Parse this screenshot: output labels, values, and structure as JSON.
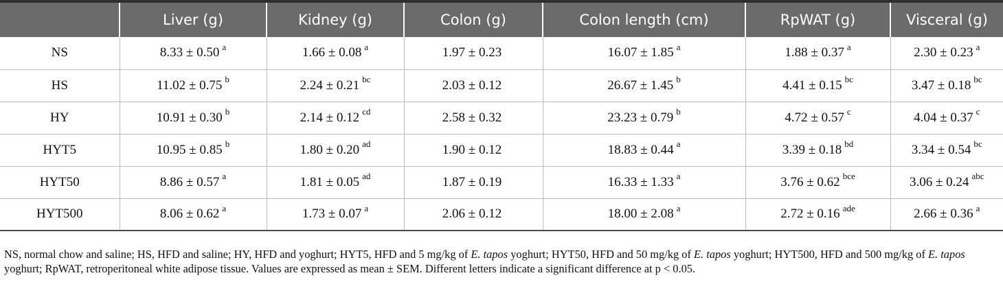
{
  "table": {
    "headers": [
      "",
      "Liver (g)",
      "Kidney (g)",
      "Colon (g)",
      "Colon length (cm)",
      "RpWAT (g)",
      "Visceral (g)"
    ],
    "rows": [
      {
        "group": "NS",
        "cells": [
          {
            "v": "8.33 ± 0.50",
            "s": "a"
          },
          {
            "v": "1.66 ± 0.08",
            "s": "a"
          },
          {
            "v": "1.97 ± 0.23",
            "s": ""
          },
          {
            "v": "16.07 ± 1.85",
            "s": "a"
          },
          {
            "v": "1.88 ± 0.37",
            "s": "a"
          },
          {
            "v": "2.30 ± 0.23",
            "s": "a"
          }
        ]
      },
      {
        "group": "HS",
        "cells": [
          {
            "v": "11.02 ± 0.75",
            "s": "b"
          },
          {
            "v": "2.24 ± 0.21",
            "s": "bc"
          },
          {
            "v": "2.03 ± 0.12",
            "s": ""
          },
          {
            "v": "26.67 ± 1.45",
            "s": "b"
          },
          {
            "v": "4.41 ± 0.15",
            "s": "bc"
          },
          {
            "v": "3.47 ± 0.18",
            "s": "bc"
          }
        ]
      },
      {
        "group": "HY",
        "cells": [
          {
            "v": "10.91 ± 0.30",
            "s": "b"
          },
          {
            "v": "2.14 ± 0.12",
            "s": "cd"
          },
          {
            "v": "2.58 ± 0.32",
            "s": ""
          },
          {
            "v": "23.23 ± 0.79",
            "s": "b"
          },
          {
            "v": "4.72 ± 0.57",
            "s": "c"
          },
          {
            "v": "4.04 ± 0.37",
            "s": "c"
          }
        ]
      },
      {
        "group": "HYT5",
        "cells": [
          {
            "v": "10.95 ± 0.85",
            "s": "b"
          },
          {
            "v": "1.80 ± 0.20",
            "s": "ad"
          },
          {
            "v": "1.90 ± 0.12",
            "s": ""
          },
          {
            "v": "18.83 ± 0.44",
            "s": "a"
          },
          {
            "v": "3.39 ± 0.18",
            "s": "bd"
          },
          {
            "v": "3.34 ± 0.54",
            "s": "bc"
          }
        ]
      },
      {
        "group": "HYT50",
        "cells": [
          {
            "v": "8.86 ± 0.57",
            "s": "a"
          },
          {
            "v": "1.81 ± 0.05",
            "s": "ad"
          },
          {
            "v": "1.87 ± 0.19",
            "s": ""
          },
          {
            "v": "16.33 ± 1.33",
            "s": "a"
          },
          {
            "v": "3.76 ± 0.62",
            "s": "bce"
          },
          {
            "v": "3.06 ± 0.24",
            "s": "abc"
          }
        ]
      },
      {
        "group": "HYT500",
        "cells": [
          {
            "v": "8.06 ± 0.62",
            "s": "a"
          },
          {
            "v": "1.73 ± 0.07",
            "s": "a"
          },
          {
            "v": "2.06 ± 0.12",
            "s": ""
          },
          {
            "v": "18.00 ± 2.08",
            "s": "a"
          },
          {
            "v": "2.72 ± 0.16",
            "s": "ade"
          },
          {
            "v": "2.66 ± 0.36",
            "s": "a"
          }
        ]
      }
    ]
  },
  "footnote": {
    "p1": "NS, normal chow and saline; HS, HFD and saline; HY, HFD and yoghurt; HYT5, HFD and 5 mg/kg of ",
    "i1": "E. tapos",
    "p2": " yoghurt; HYT50, HFD and 50 mg/kg of ",
    "i2": "E. tapos",
    "p3": " yoghurt; HYT500, HFD and 500 mg/kg of ",
    "i3": "E. tapos",
    "p4": " yoghurt; RpWAT, retroperitoneal white adipose tissue. Values are expressed as mean ± SEM. Different letters indicate a significant difference at p < 0.05."
  },
  "colors": {
    "header_bg": "#6b6b6b",
    "header_text": "#ffffff",
    "rule": "#bdbdbd"
  }
}
